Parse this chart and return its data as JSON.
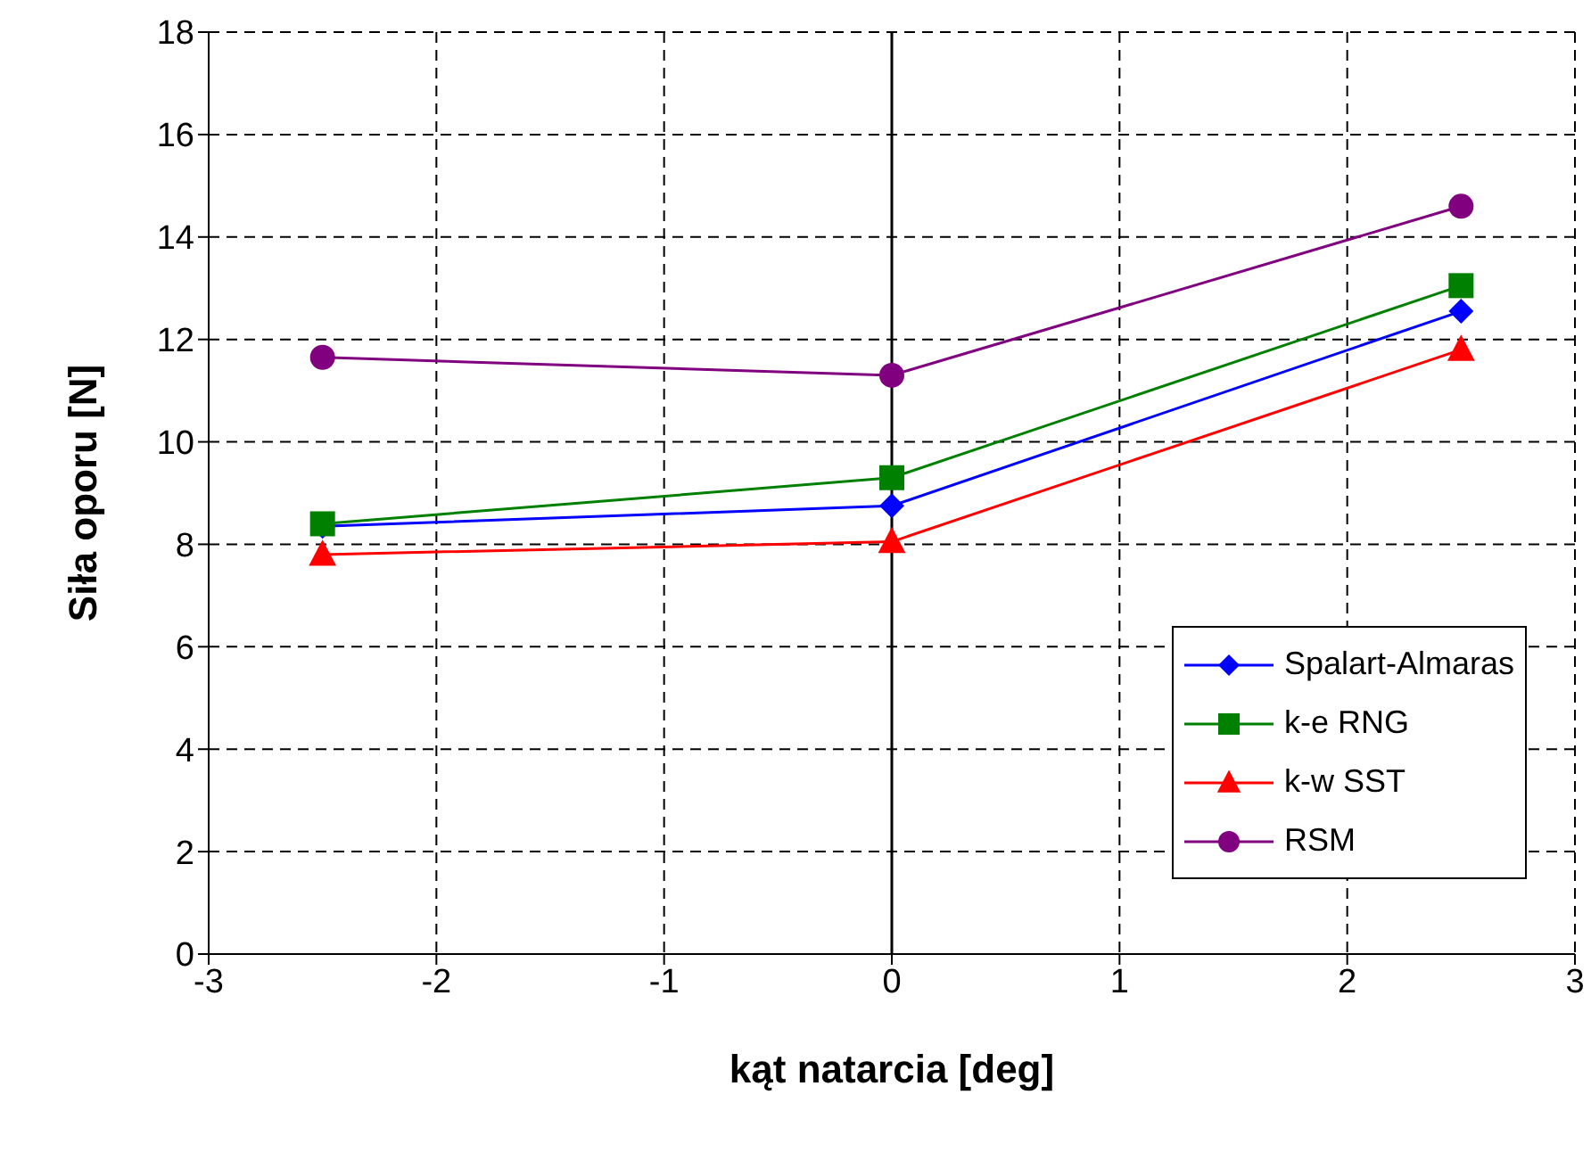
{
  "chart_data": {
    "type": "line",
    "xlabel": "kąt natarcia [deg]",
    "ylabel": "Siła oporu [N]",
    "x": [
      -2.5,
      0,
      2.5
    ],
    "series": [
      {
        "name": "Spalart-Almaras",
        "color": "#0000ff",
        "marker": "diamond",
        "values": [
          8.35,
          8.75,
          12.55
        ]
      },
      {
        "name": "k-e RNG",
        "color": "#008000",
        "marker": "square",
        "values": [
          8.4,
          9.3,
          13.05
        ]
      },
      {
        "name": "k-w SST",
        "color": "#ff0000",
        "marker": "triangle",
        "values": [
          7.8,
          8.05,
          11.8
        ]
      },
      {
        "name": "RSM",
        "color": "#800080",
        "marker": "circle",
        "values": [
          11.65,
          11.3,
          14.6
        ]
      }
    ],
    "xlim": [
      -3,
      3
    ],
    "xticks": [
      -3,
      -2,
      -1,
      0,
      1,
      2,
      3
    ],
    "ylim": [
      0,
      18
    ],
    "yticks": [
      0,
      2,
      4,
      6,
      8,
      10,
      12,
      14,
      16,
      18
    ],
    "grid": true,
    "legend": "bottom right",
    "line_style": "solid",
    "ref_lines": [
      {
        "axis": "x",
        "value": 0,
        "color": "#000000",
        "line_style": "solid"
      }
    ]
  }
}
